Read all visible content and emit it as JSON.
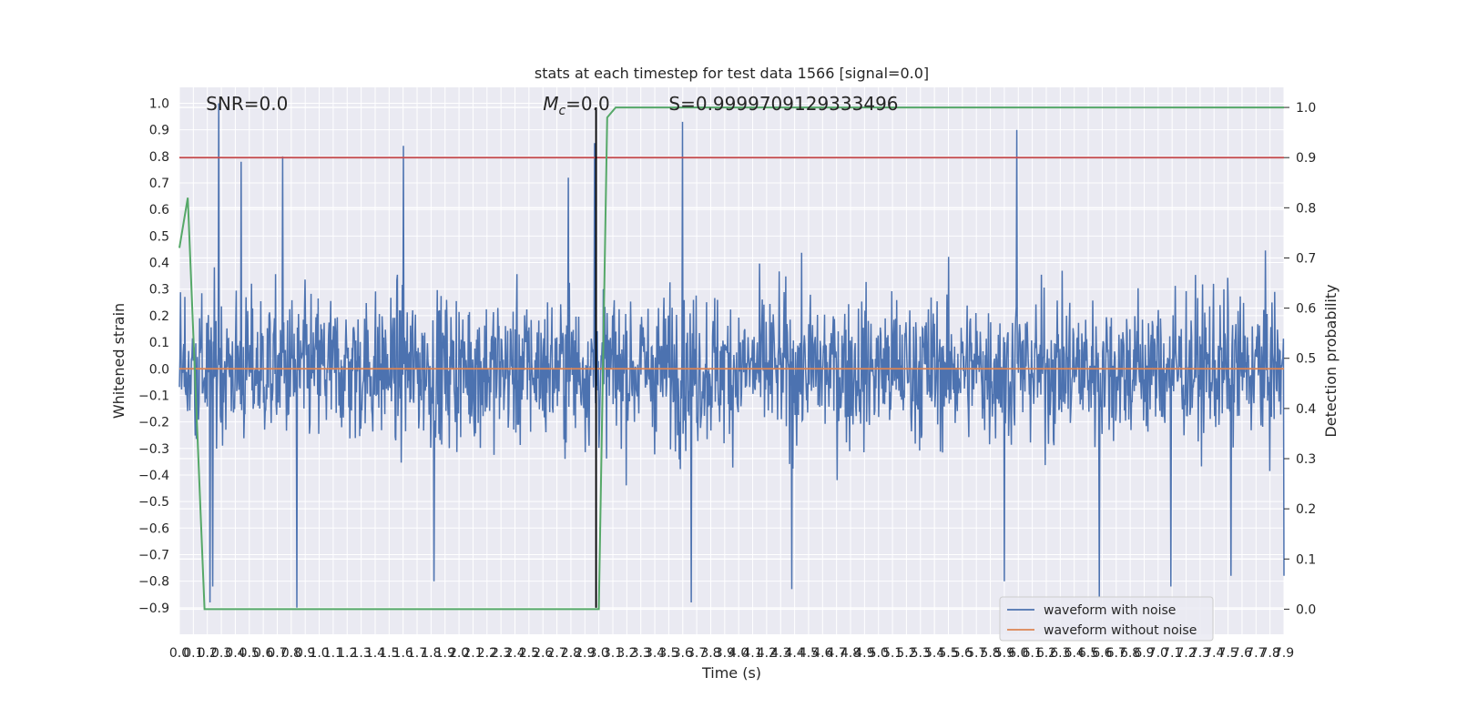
{
  "chart_data": {
    "type": "line",
    "title": "stats at each timestep for test data 1566 [signal=0.0]",
    "xlabel": "Time (s)",
    "ylabel": "Whitened strain",
    "y2label": "Detection probability",
    "xlim": [
      0.0,
      7.9
    ],
    "ylim": [
      -1.0,
      1.06
    ],
    "y2lim": [
      -0.05,
      1.04
    ],
    "x_ticks": [
      "0.0",
      "0.1",
      "0.2",
      "0.3",
      "0.4",
      "0.5",
      "0.6",
      "0.7",
      "0.8",
      "0.9",
      "1.0",
      "1.1",
      "1.2",
      "1.3",
      "1.4",
      "1.5",
      "1.6",
      "1.7",
      "1.8",
      "1.9",
      "2.0",
      "2.1",
      "2.2",
      "2.3",
      "2.4",
      "2.5",
      "2.6",
      "2.7",
      "2.8",
      "2.9",
      "3.0",
      "3.1",
      "3.2",
      "3.3",
      "3.4",
      "3.5",
      "3.6",
      "3.7",
      "3.8",
      "3.9",
      "4.0",
      "4.1",
      "4.2",
      "4.3",
      "4.4",
      "4.5",
      "4.6",
      "4.7",
      "4.8",
      "4.9",
      "5.0",
      "5.1",
      "5.2",
      "5.3",
      "5.4",
      "5.5",
      "5.6",
      "5.7",
      "5.8",
      "5.9",
      "6.0",
      "6.1",
      "6.2",
      "6.3",
      "6.4",
      "6.5",
      "6.6",
      "6.7",
      "6.8",
      "6.9",
      "7.0",
      "7.1",
      "7.2",
      "7.3",
      "7.4",
      "7.5",
      "7.6",
      "7.7",
      "7.8",
      "7.9"
    ],
    "y_ticks": [
      "1.0",
      "0.9",
      "0.8",
      "0.7",
      "0.6",
      "0.5",
      "0.4",
      "0.3",
      "0.2",
      "0.1",
      "0.0",
      "−0.1",
      "−0.2",
      "−0.3",
      "−0.4",
      "−0.5",
      "−0.6",
      "−0.7",
      "−0.8",
      "−0.9"
    ],
    "y2_ticks": [
      "1.0",
      "0.9",
      "0.8",
      "0.7",
      "0.6",
      "0.5",
      "0.4",
      "0.3",
      "0.2",
      "0.1",
      "0.0"
    ],
    "series": [
      {
        "name": "waveform with noise",
        "color": "#4c72b0",
        "kind": "noise",
        "sample_rate": 256,
        "envelope": 0.33,
        "peaks": [
          [
            0.28,
            1.0
          ],
          [
            0.24,
            -0.82
          ],
          [
            0.22,
            -0.88
          ],
          [
            0.44,
            0.78
          ],
          [
            0.74,
            0.8
          ],
          [
            0.84,
            -0.9
          ],
          [
            1.6,
            0.84
          ],
          [
            1.82,
            -0.8
          ],
          [
            2.78,
            0.72
          ],
          [
            2.97,
            0.85
          ],
          [
            3.6,
            0.93
          ],
          [
            3.66,
            -0.88
          ],
          [
            4.38,
            -0.83
          ],
          [
            5.9,
            -0.8
          ],
          [
            5.99,
            0.9
          ],
          [
            6.58,
            -0.86
          ],
          [
            7.09,
            -0.82
          ],
          [
            7.52,
            -0.78
          ],
          [
            7.9,
            -0.78
          ]
        ]
      },
      {
        "name": "waveform without noise",
        "color": "#dd8452",
        "kind": "flat",
        "value": 0.0
      }
    ],
    "detection_probability": {
      "color": "#55a868",
      "x": [
        0.0,
        0.06,
        0.18,
        0.24,
        0.5,
        1.0,
        2.0,
        2.9,
        2.96,
        3.0,
        3.06,
        3.12,
        3.5,
        7.9
      ],
      "y": [
        0.72,
        0.82,
        0.0,
        -0.0,
        -0.0,
        -0.0,
        -0.0,
        -0.0,
        0.0,
        0.0,
        0.98,
        1.0,
        1.0,
        1.0
      ]
    },
    "threshold": {
      "color": "#c44e52",
      "y2": 0.9
    },
    "marker_time": {
      "x": 2.98,
      "color": "#000000"
    },
    "annotations": {
      "snr": "SNR=0.0",
      "mc_symbol": "M",
      "mc_sub": "c",
      "mc_value": "=0.0",
      "s": "S=0.9999709129333496"
    },
    "legend": {
      "position": "lower-right",
      "items": [
        "waveform with noise",
        "waveform without noise"
      ]
    },
    "grid": true
  }
}
